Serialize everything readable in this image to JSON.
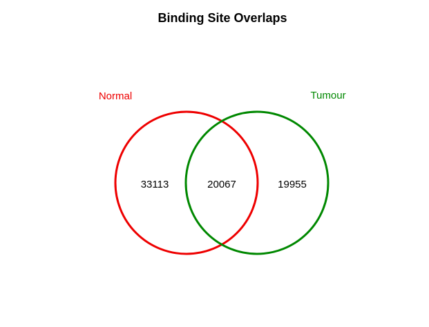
{
  "title": "Binding Site Overlaps",
  "sets": [
    {
      "label": "Normal",
      "color": "#ee0000"
    },
    {
      "label": "Tumour",
      "color": "#008800"
    }
  ],
  "regions": {
    "normal_only": "33113",
    "overlap": "20067",
    "tumour_only": "19955"
  }
}
